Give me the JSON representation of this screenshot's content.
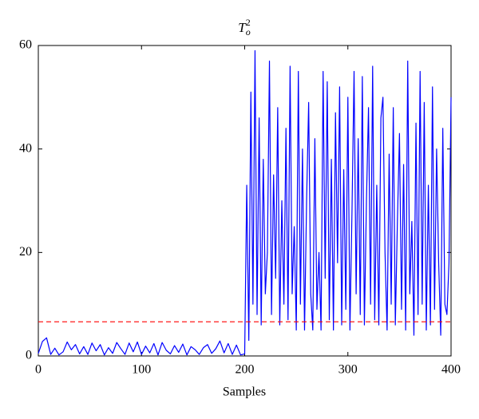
{
  "chart_data": {
    "type": "line",
    "title": "T",
    "title_sub": "o",
    "title_sup": "2",
    "xlabel": "Samples",
    "x": [
      0,
      4,
      8,
      12,
      16,
      20,
      24,
      28,
      32,
      36,
      40,
      44,
      48,
      52,
      56,
      60,
      64,
      68,
      72,
      76,
      80,
      84,
      88,
      92,
      96,
      100,
      104,
      108,
      112,
      116,
      120,
      124,
      128,
      132,
      136,
      140,
      144,
      148,
      152,
      156,
      160,
      164,
      168,
      172,
      176,
      180,
      184,
      188,
      192,
      196,
      200,
      202,
      204,
      206,
      208,
      210,
      212,
      214,
      216,
      218,
      220,
      222,
      224,
      226,
      228,
      230,
      232,
      234,
      236,
      238,
      240,
      242,
      244,
      246,
      248,
      250,
      252,
      254,
      256,
      258,
      260,
      262,
      264,
      266,
      268,
      270,
      272,
      274,
      276,
      278,
      280,
      282,
      284,
      286,
      288,
      290,
      292,
      294,
      296,
      298,
      300,
      302,
      304,
      306,
      308,
      310,
      312,
      314,
      316,
      318,
      320,
      322,
      324,
      326,
      328,
      330,
      332,
      334,
      336,
      338,
      340,
      342,
      344,
      346,
      348,
      350,
      352,
      354,
      356,
      358,
      360,
      362,
      364,
      366,
      368,
      370,
      372,
      374,
      376,
      378,
      380,
      382,
      384,
      386,
      388,
      390,
      392,
      394,
      396,
      398,
      400
    ],
    "series": [
      {
        "color": "#0000ff",
        "values": [
          0.5,
          2.8,
          3.5,
          0.3,
          1.5,
          0.2,
          0.8,
          2.7,
          1.2,
          2.2,
          0.4,
          1.8,
          0.3,
          2.5,
          1.0,
          2.2,
          0.2,
          1.6,
          0.5,
          2.6,
          1.4,
          0.3,
          2.5,
          0.8,
          2.7,
          0.3,
          1.9,
          0.6,
          2.4,
          0.2,
          2.6,
          1.1,
          0.4,
          2.0,
          0.7,
          2.3,
          0.2,
          1.8,
          1.2,
          0.3,
          1.6,
          2.2,
          0.5,
          1.4,
          2.9,
          0.6,
          2.4,
          0.3,
          2.1,
          0.2,
          0.4,
          33,
          3,
          51,
          10,
          59,
          8,
          46,
          6,
          38,
          12,
          20,
          57,
          8,
          35,
          15,
          48,
          6,
          30,
          10,
          44,
          7,
          56,
          12,
          25,
          5,
          55,
          10,
          40,
          5,
          30,
          49,
          12,
          5,
          42,
          9,
          20,
          5,
          55,
          15,
          53,
          7,
          38,
          5,
          47,
          18,
          52,
          6,
          36,
          9,
          50,
          5,
          28,
          55,
          12,
          42,
          8,
          54,
          6,
          30,
          48,
          10,
          56,
          7,
          33,
          6,
          46,
          50,
          20,
          5,
          39,
          10,
          48,
          6,
          26,
          43,
          9,
          37,
          5,
          57,
          12,
          26,
          4,
          45,
          8,
          55,
          10,
          49,
          5,
          33,
          6,
          52,
          9,
          40,
          18,
          4,
          44,
          10,
          8,
          18,
          50
        ]
      }
    ],
    "threshold": 6.6,
    "threshold_color": "#ff0000",
    "xlim": [
      0,
      400
    ],
    "xticks": [
      0,
      100,
      200,
      300,
      400
    ],
    "ylim": [
      0,
      60
    ],
    "yticks": [
      0,
      20,
      40,
      60
    ],
    "grid": false
  }
}
